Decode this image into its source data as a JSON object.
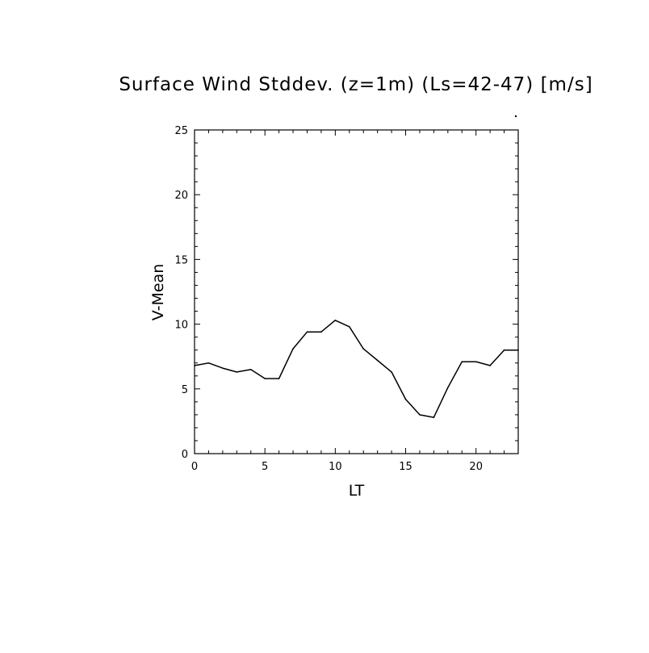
{
  "chart_data": {
    "type": "line",
    "title": "Surface Wind Stddev. (z=1m) (Ls=42-47) [m/s]",
    "xlabel": "LT",
    "ylabel": "V-Mean",
    "xlim": [
      0,
      23
    ],
    "ylim": [
      0,
      25
    ],
    "x_ticks": [
      0,
      5,
      10,
      15,
      20
    ],
    "x_tick_labels": [
      "0",
      "5",
      "10",
      "15",
      "20"
    ],
    "y_ticks": [
      0,
      5,
      10,
      15,
      20,
      25
    ],
    "y_tick_labels": [
      "0",
      "5",
      "10",
      "15",
      "20",
      "25"
    ],
    "grid": false,
    "series": [
      {
        "x": [
          0,
          1,
          2,
          3,
          4,
          5,
          6,
          7,
          8,
          9,
          10,
          11,
          12,
          13,
          14,
          15,
          16,
          17,
          18,
          19,
          20,
          21,
          22,
          23
        ],
        "values": [
          6.8,
          7.0,
          6.6,
          6.3,
          6.5,
          5.8,
          5.8,
          8.1,
          9.4,
          9.4,
          10.3,
          9.8,
          8.1,
          7.2,
          6.3,
          4.2,
          3.0,
          2.8,
          5.1,
          7.1,
          7.1,
          6.8,
          8.0,
          8.0
        ]
      }
    ]
  }
}
